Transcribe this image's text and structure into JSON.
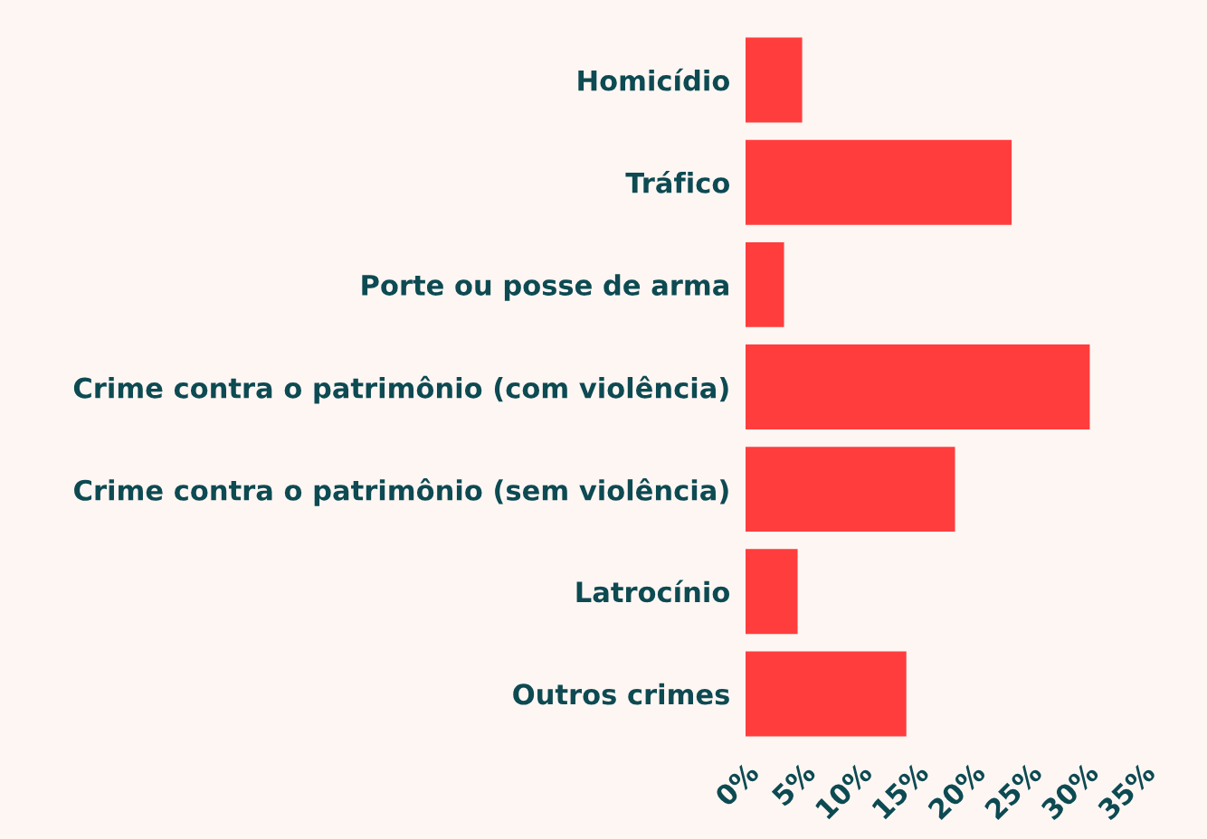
{
  "chart_data": {
    "type": "bar",
    "orientation": "horizontal",
    "categories": [
      "Homicídio",
      "Tráfico",
      "Porte ou posse de arma",
      "Crime contra o patrimônio (com violência)",
      "Crime contra o patrimônio (sem violência)",
      "Latrocínio",
      "Outros crimes"
    ],
    "values": [
      5.0,
      23.5,
      3.4,
      30.4,
      18.5,
      4.6,
      14.2
    ],
    "color": "#ff3d3d",
    "xlim": [
      0,
      35
    ],
    "xticks": [
      {
        "value": 0,
        "label": "0%"
      },
      {
        "value": 5,
        "label": "5%"
      },
      {
        "value": 10,
        "label": "10%"
      },
      {
        "value": 15,
        "label": "15%"
      },
      {
        "value": 20,
        "label": "20%"
      },
      {
        "value": 25,
        "label": "25%"
      },
      {
        "value": 30,
        "label": "30%"
      },
      {
        "value": 35,
        "label": "35%"
      }
    ],
    "grid": false,
    "legend": false
  }
}
